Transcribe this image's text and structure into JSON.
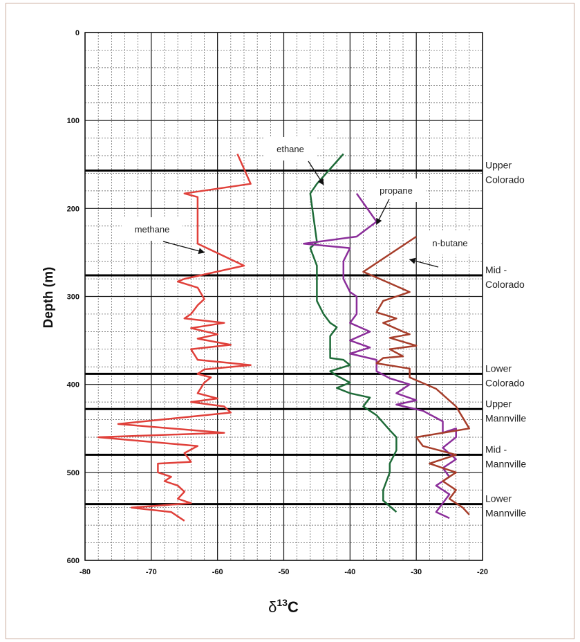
{
  "chart_data": {
    "type": "line",
    "xlabel": "δ13C",
    "ylabel": "Depth (m)",
    "xlim": [
      -80,
      -20
    ],
    "ylim": [
      0,
      600
    ],
    "y_inverted": true,
    "grid": true,
    "x_ticks": [
      -80,
      -70,
      -60,
      -50,
      -40,
      -30,
      -20
    ],
    "y_ticks": [
      0,
      100,
      200,
      300,
      400,
      500,
      600
    ],
    "formation_tops": [
      {
        "depth": 157,
        "label_lines": [
          "Upper",
          "Colorado"
        ]
      },
      {
        "depth": 276,
        "label_lines": [
          "Mid -",
          "Colorado"
        ]
      },
      {
        "depth": 388,
        "label_lines": [
          "Lower",
          "Colorado"
        ]
      },
      {
        "depth": 428,
        "label_lines": [
          "Upper",
          "Mannville"
        ]
      },
      {
        "depth": 480,
        "label_lines": [
          "Mid -",
          "Mannville"
        ]
      },
      {
        "depth": 536,
        "label_lines": [
          "Lower",
          "Mannville"
        ]
      }
    ],
    "series": [
      {
        "name": "methane",
        "color": "#e0403a",
        "points": [
          [
            -57,
            138
          ],
          [
            -55,
            172
          ],
          [
            -65,
            183
          ],
          [
            -63,
            187
          ],
          [
            -63,
            240
          ],
          [
            -56,
            265
          ],
          [
            -65,
            280
          ],
          [
            -66,
            283
          ],
          [
            -63,
            290
          ],
          [
            -62,
            303
          ],
          [
            -63,
            310
          ],
          [
            -64,
            320
          ],
          [
            -65,
            325
          ],
          [
            -59,
            330
          ],
          [
            -64,
            336
          ],
          [
            -60,
            343
          ],
          [
            -63,
            348
          ],
          [
            -58,
            355
          ],
          [
            -64,
            360
          ],
          [
            -63,
            372
          ],
          [
            -59,
            375
          ],
          [
            -55,
            378
          ],
          [
            -62,
            383
          ],
          [
            -63,
            388
          ],
          [
            -61,
            392
          ],
          [
            -62,
            398
          ],
          [
            -63,
            410
          ],
          [
            -60,
            416
          ],
          [
            -64,
            420
          ],
          [
            -59,
            425
          ],
          [
            -58,
            432
          ],
          [
            -75,
            445
          ],
          [
            -59,
            455
          ],
          [
            -78,
            460
          ],
          [
            -63,
            470
          ],
          [
            -65,
            478
          ],
          [
            -64,
            488
          ],
          [
            -69,
            490
          ],
          [
            -69,
            500
          ],
          [
            -67,
            505
          ],
          [
            -68,
            510
          ],
          [
            -66,
            515
          ],
          [
            -65,
            522
          ],
          [
            -66,
            530
          ],
          [
            -64,
            535
          ],
          [
            -73,
            540
          ],
          [
            -67,
            545
          ],
          [
            -65,
            555
          ]
        ]
      },
      {
        "name": "ethane",
        "color": "#1e6b38",
        "points": [
          [
            -41,
            138
          ],
          [
            -45,
            172
          ],
          [
            -46,
            183
          ],
          [
            -45,
            238
          ],
          [
            -46,
            245
          ],
          [
            -45,
            265
          ],
          [
            -45,
            305
          ],
          [
            -44,
            320
          ],
          [
            -43,
            330
          ],
          [
            -42,
            335
          ],
          [
            -43,
            345
          ],
          [
            -43,
            370
          ],
          [
            -41,
            372
          ],
          [
            -40,
            378
          ],
          [
            -43,
            385
          ],
          [
            -42,
            390
          ],
          [
            -40,
            398
          ],
          [
            -42,
            404
          ],
          [
            -40,
            410
          ],
          [
            -37,
            415
          ],
          [
            -38,
            425
          ],
          [
            -36,
            435
          ],
          [
            -34,
            452
          ],
          [
            -33,
            460
          ],
          [
            -33,
            475
          ],
          [
            -34,
            490
          ],
          [
            -34,
            500
          ],
          [
            -35,
            520
          ],
          [
            -35,
            532
          ],
          [
            -33,
            545
          ]
        ]
      },
      {
        "name": "propane",
        "color": "#8b2e9a",
        "points": [
          [
            -39,
            183
          ],
          [
            -36,
            215
          ],
          [
            -39,
            232
          ],
          [
            -47,
            240
          ],
          [
            -40,
            245
          ],
          [
            -41,
            260
          ],
          [
            -41,
            280
          ],
          [
            -40,
            295
          ],
          [
            -39,
            300
          ],
          [
            -39,
            320
          ],
          [
            -40,
            330
          ],
          [
            -37,
            340
          ],
          [
            -40,
            350
          ],
          [
            -37,
            358
          ],
          [
            -40,
            365
          ],
          [
            -36,
            372
          ],
          [
            -36,
            385
          ],
          [
            -34,
            393
          ],
          [
            -31,
            400
          ],
          [
            -33,
            410
          ],
          [
            -30,
            418
          ],
          [
            -33,
            423
          ],
          [
            -29,
            430
          ],
          [
            -26,
            442
          ],
          [
            -26,
            455
          ],
          [
            -24,
            450
          ],
          [
            -24,
            460
          ],
          [
            -26,
            472
          ],
          [
            -24,
            485
          ],
          [
            -26,
            495
          ],
          [
            -25,
            505
          ],
          [
            -27,
            515
          ],
          [
            -25,
            525
          ],
          [
            -27,
            545
          ],
          [
            -25,
            552
          ]
        ]
      },
      {
        "name": "n-butane",
        "color": "#a63d2a",
        "points": [
          [
            -30,
            232
          ],
          [
            -38,
            272
          ],
          [
            -34,
            285
          ],
          [
            -31,
            295
          ],
          [
            -35,
            305
          ],
          [
            -36,
            318
          ],
          [
            -33,
            325
          ],
          [
            -35,
            330
          ],
          [
            -32,
            340
          ],
          [
            -31,
            343
          ],
          [
            -34,
            347
          ],
          [
            -30,
            356
          ],
          [
            -34,
            360
          ],
          [
            -32,
            368
          ],
          [
            -35,
            370
          ],
          [
            -36,
            376
          ],
          [
            -31,
            382
          ],
          [
            -31,
            392
          ],
          [
            -27,
            405
          ],
          [
            -24,
            425
          ],
          [
            -22,
            450
          ],
          [
            -30,
            460
          ],
          [
            -29,
            470
          ],
          [
            -24,
            480
          ],
          [
            -28,
            490
          ],
          [
            -24,
            500
          ],
          [
            -26,
            510
          ],
          [
            -24,
            520
          ],
          [
            -25,
            530
          ],
          [
            -23,
            540
          ],
          [
            -22,
            548
          ]
        ]
      }
    ],
    "callouts": [
      {
        "text": "methane",
        "target": [
          -62,
          250
        ]
      },
      {
        "text": "ethane",
        "target": [
          -44,
          173
        ]
      },
      {
        "text": "propane",
        "target": [
          -36,
          218
        ]
      },
      {
        "text": "n-butane",
        "target": [
          -31,
          258
        ]
      }
    ]
  }
}
